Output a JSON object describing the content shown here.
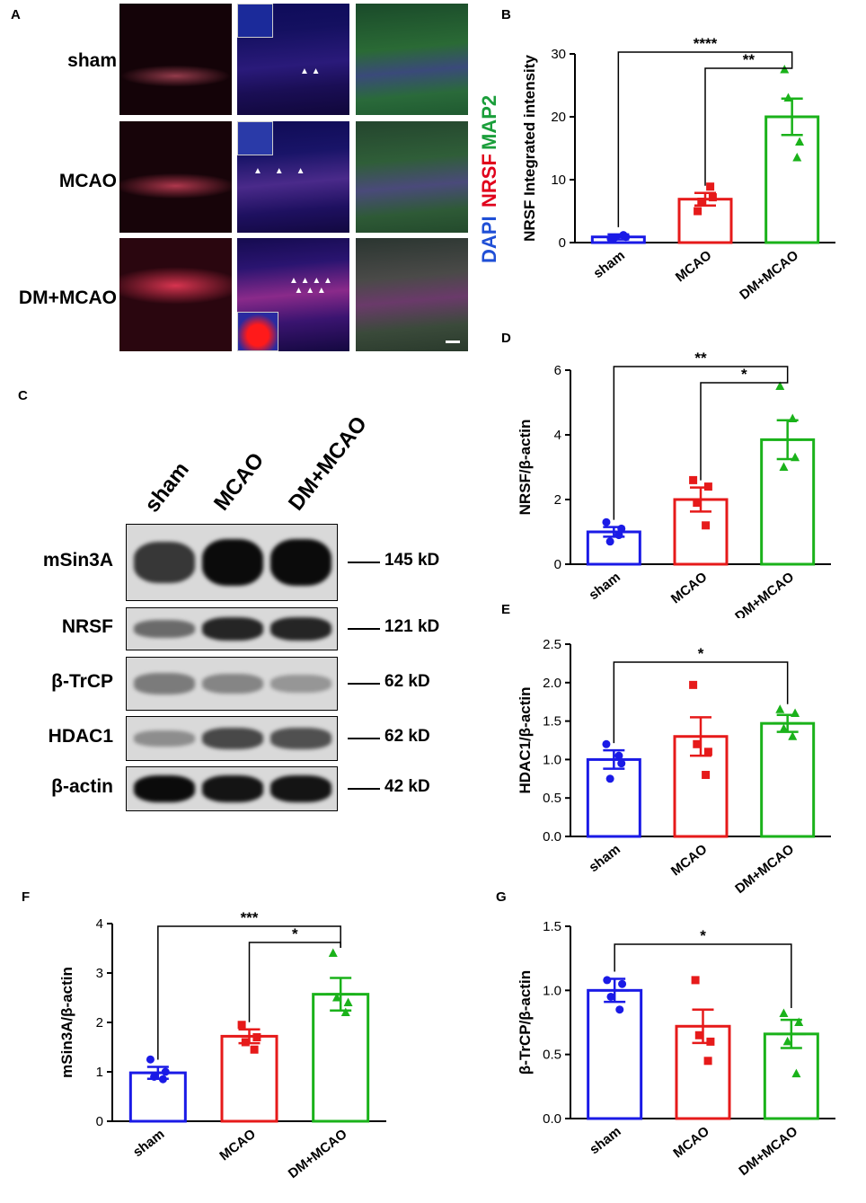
{
  "figure": {
    "panel_letters": [
      "A",
      "B",
      "C",
      "D",
      "E",
      "F",
      "G"
    ],
    "groups": [
      "sham",
      "MCAO",
      "DM+MCAO"
    ],
    "colors": {
      "sham": "#1a1ae6",
      "MCAO": "#e61a1a",
      "DM+MCAO": "#1ab21a",
      "dapi": "#1f4fd6",
      "nrsf": "#e0001b",
      "map2": "#1a9e3a"
    },
    "legend": {
      "dapi": "DAPI",
      "nrsf": "NRSF",
      "map2": "MAP2"
    },
    "western_blot": {
      "lanes": [
        "sham",
        "MCAO",
        "DM+MCAO"
      ],
      "rows": [
        {
          "protein": "mSin3A",
          "size": "145 kD",
          "intensity": [
            0.75,
            1.0,
            1.0
          ]
        },
        {
          "protein": "NRSF",
          "size": "121 kD",
          "intensity": [
            0.45,
            0.85,
            0.85
          ]
        },
        {
          "protein": "β-TrCP",
          "size": "62 kD",
          "intensity": [
            0.35,
            0.3,
            0.2
          ]
        },
        {
          "protein": "HDAC1",
          "size": "62 kD",
          "intensity": [
            0.25,
            0.65,
            0.6
          ]
        },
        {
          "protein": "β-actin",
          "size": "42 kD",
          "intensity": [
            1.0,
            0.95,
            0.95
          ]
        }
      ]
    }
  },
  "chart_data": [
    {
      "panel": "B",
      "type": "bar",
      "categories": [
        "sham",
        "MCAO",
        "DM+MCAO"
      ],
      "values": [
        0.9,
        6.9,
        20.0
      ],
      "errors": [
        0.4,
        1.0,
        2.9
      ],
      "points": [
        [
          0.6,
          1.2,
          0.8,
          0.9
        ],
        [
          5.0,
          8.9,
          6.5,
          7.2
        ],
        [
          27.5,
          13.5,
          23.0,
          16.0
        ]
      ],
      "ylabel": "NRSF Integrated intensity",
      "ylim": [
        0,
        30
      ],
      "yticks": [
        0,
        10,
        20,
        30
      ],
      "significance": [
        {
          "from": "sham",
          "to": "DM+MCAO",
          "label": "****"
        },
        {
          "from": "MCAO",
          "to": "DM+MCAO",
          "label": "**"
        }
      ]
    },
    {
      "panel": "D",
      "type": "bar",
      "categories": [
        "sham",
        "MCAO",
        "DM+MCAO"
      ],
      "values": [
        1.0,
        2.0,
        3.85
      ],
      "errors": [
        0.15,
        0.37,
        0.6
      ],
      "points": [
        [
          1.3,
          0.9,
          0.7,
          1.1
        ],
        [
          2.6,
          1.2,
          1.9,
          2.4
        ],
        [
          5.5,
          4.5,
          3.0,
          3.3
        ]
      ],
      "ylabel": "NRSF/β-actin",
      "ylim": [
        0,
        6
      ],
      "yticks": [
        0,
        2,
        4,
        6
      ],
      "significance": [
        {
          "from": "sham",
          "to": "DM+MCAO",
          "label": "**"
        },
        {
          "from": "MCAO",
          "to": "DM+MCAO",
          "label": "*"
        }
      ]
    },
    {
      "panel": "E",
      "type": "bar",
      "categories": [
        "sham",
        "MCAO",
        "DM+MCAO"
      ],
      "values": [
        1.0,
        1.3,
        1.47
      ],
      "errors": [
        0.12,
        0.25,
        0.11
      ],
      "points": [
        [
          1.2,
          1.05,
          0.75,
          0.95
        ],
        [
          1.97,
          0.8,
          1.2,
          1.1
        ],
        [
          1.65,
          1.3,
          1.4,
          1.6
        ]
      ],
      "ylabel": "HDAC1/β-actin",
      "ylim": [
        0,
        2.5
      ],
      "yticks": [
        "0.0",
        "0.5",
        "1.0",
        "1.5",
        "2.0",
        "2.5"
      ],
      "significance": [
        {
          "from": "sham",
          "to": "DM+MCAO",
          "label": "*"
        }
      ]
    },
    {
      "panel": "F",
      "type": "bar",
      "categories": [
        "sham",
        "MCAO",
        "DM+MCAO"
      ],
      "values": [
        0.98,
        1.72,
        2.57
      ],
      "errors": [
        0.12,
        0.14,
        0.33
      ],
      "points": [
        [
          1.25,
          0.85,
          0.9,
          1.0
        ],
        [
          1.95,
          1.45,
          1.6,
          1.7
        ],
        [
          3.4,
          2.2,
          2.5,
          2.4
        ]
      ],
      "ylabel": "mSin3A/β-actin",
      "ylim": [
        0,
        4
      ],
      "yticks": [
        0,
        1,
        2,
        3,
        4
      ],
      "significance": [
        {
          "from": "sham",
          "to": "DM+MCAO",
          "label": "***"
        },
        {
          "from": "MCAO",
          "to": "DM+MCAO",
          "label": "*"
        }
      ]
    },
    {
      "panel": "G",
      "type": "bar",
      "categories": [
        "sham",
        "MCAO",
        "DM+MCAO"
      ],
      "values": [
        1.0,
        0.72,
        0.66
      ],
      "errors": [
        0.09,
        0.13,
        0.11
      ],
      "points": [
        [
          1.08,
          0.85,
          0.95,
          1.05
        ],
        [
          1.08,
          0.45,
          0.65,
          0.6
        ],
        [
          0.82,
          0.35,
          0.6,
          0.75
        ]
      ],
      "ylabel": "β-TrCP/β-actin",
      "ylim": [
        0,
        1.5
      ],
      "yticks": [
        "0.0",
        "0.5",
        "1.0",
        "1.5"
      ],
      "significance": [
        {
          "from": "sham",
          "to": "DM+MCAO",
          "label": "*"
        }
      ]
    }
  ]
}
